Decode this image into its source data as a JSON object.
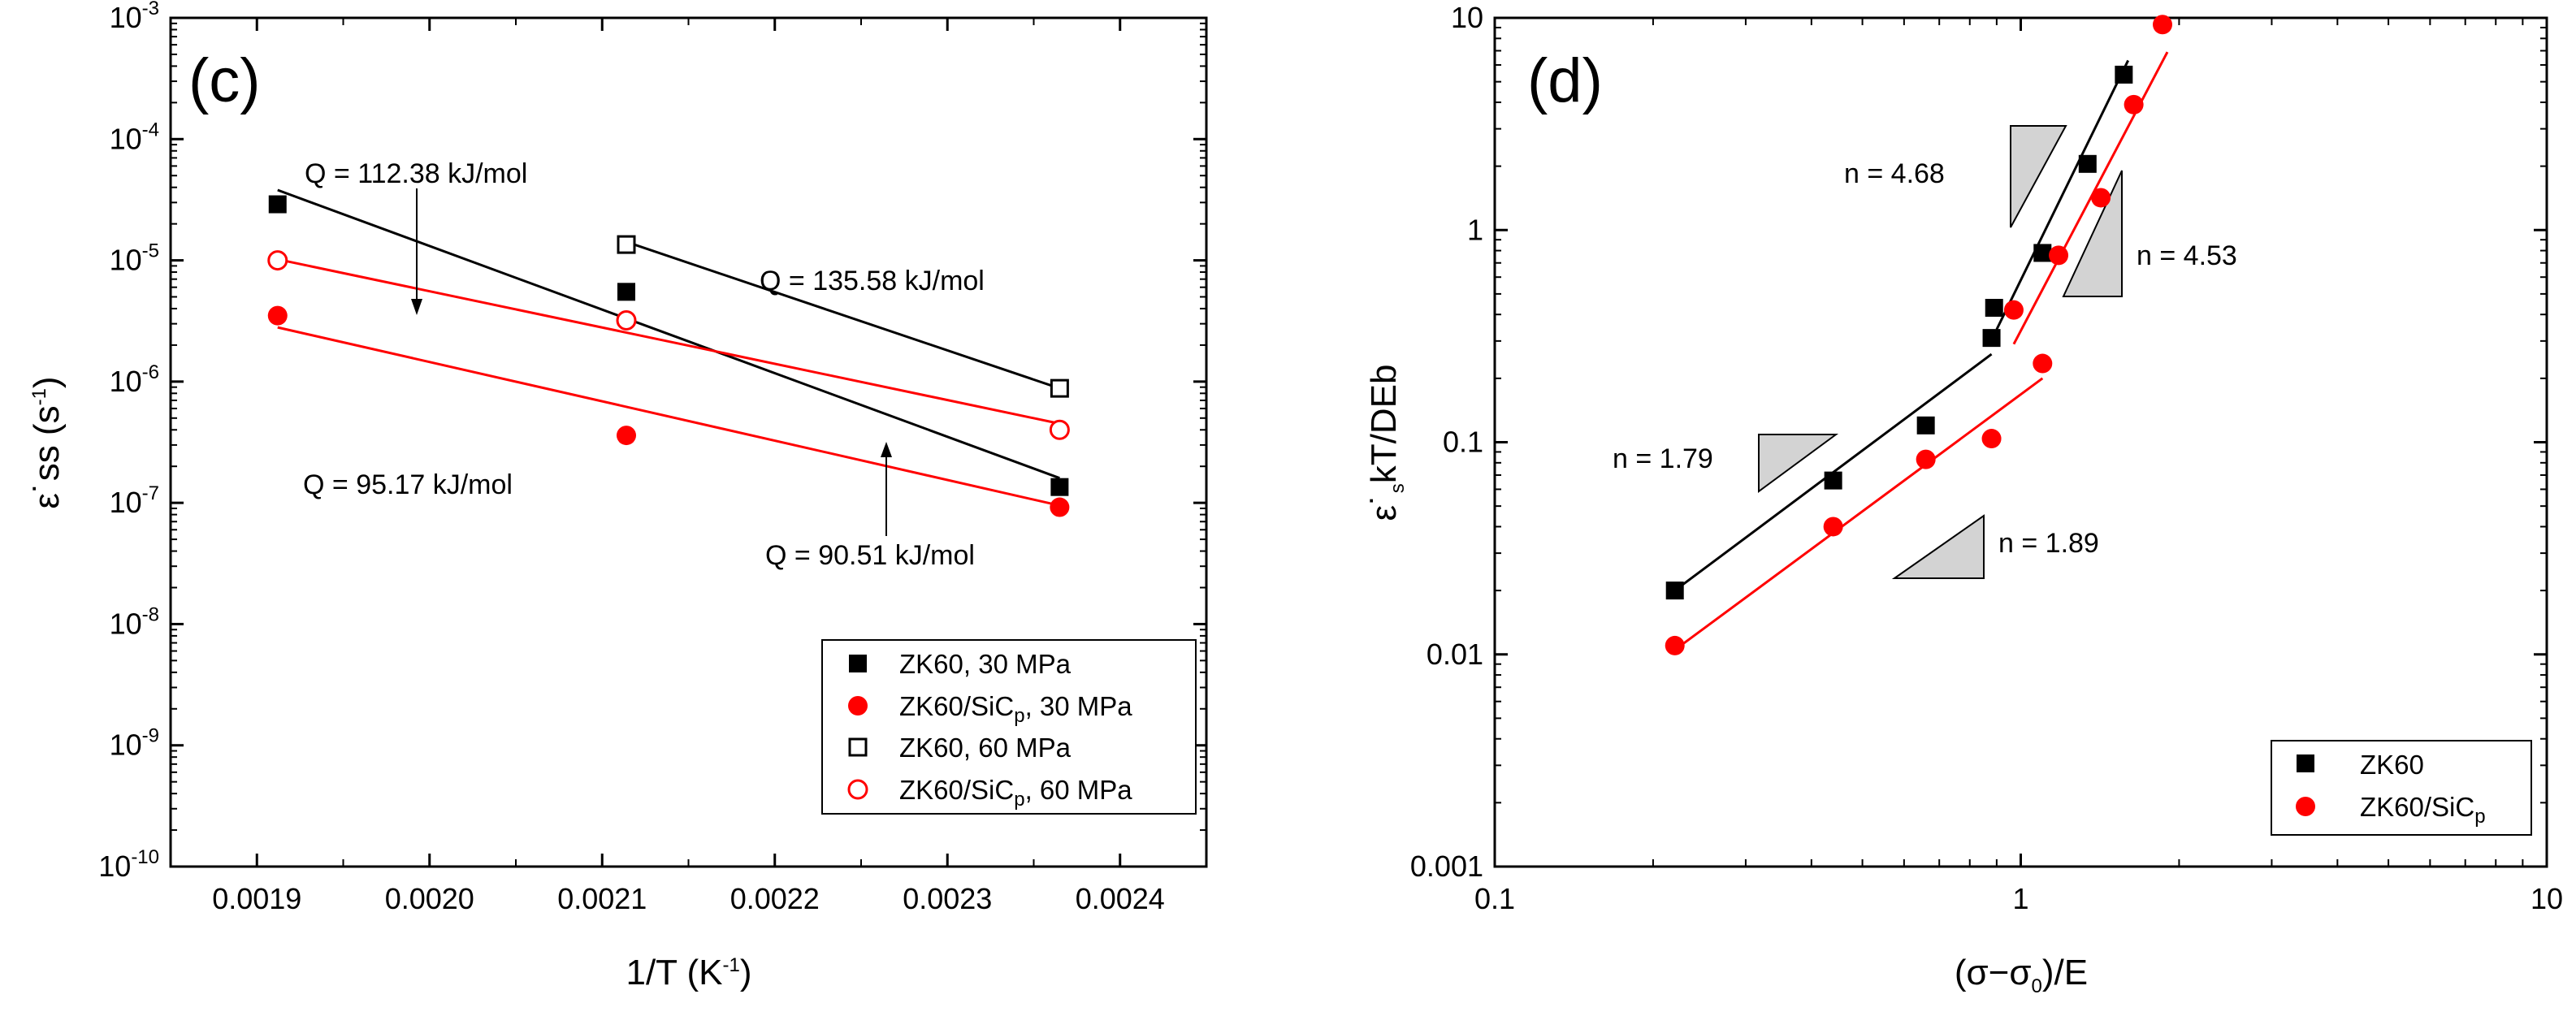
{
  "chart_data": [
    {
      "panel": "(c)",
      "type": "scatter",
      "xscale": "linear",
      "yscale": "log",
      "xlim": [
        0.00185,
        0.00245
      ],
      "ylim": [
        1e-10,
        0.001
      ],
      "xticks": [
        0.0019,
        0.002,
        0.0021,
        0.0022,
        0.0023,
        0.0024
      ],
      "xtick_labels": [
        "0.0019",
        "0.0020",
        "0.0021",
        "0.0022",
        "0.0023",
        "0.0024"
      ],
      "ytick_exponents": [
        -10,
        -9,
        -8,
        -7,
        -6,
        -5,
        -4,
        -3
      ],
      "ytick_base": "10",
      "xlabel": "1/T (K",
      "xlabel_sup": "-1",
      "xlabel_end": ")",
      "ylabel": "ε˙ss (s",
      "ylabel_sup": "-1",
      "ylabel_end": ")",
      "series": [
        {
          "name": "ZK60, 30 MPa",
          "marker": "filled-square",
          "color": "#000000",
          "x": [
            0.001912,
            0.002114,
            0.002365
          ],
          "y": [
            2.9e-05,
            5.5e-06,
            1.35e-07
          ],
          "fit": {
            "x": [
              0.001912,
              0.002365
            ],
            "y": [
              3.8e-05,
              1.6e-07
            ]
          }
        },
        {
          "name": "ZK60/SiC",
          "sub": "p",
          "name_end": ", 30 MPa",
          "marker": "filled-circle",
          "color": "#ff0000",
          "x": [
            0.001912,
            0.002114,
            0.002365
          ],
          "y": [
            3.5e-06,
            3.6e-07,
            9.2e-08
          ],
          "fit": {
            "x": [
              0.001912,
              0.002365
            ],
            "y": [
              2.8e-06,
              9.5e-08
            ]
          }
        },
        {
          "name": "ZK60, 60 MPa",
          "marker": "open-square",
          "color": "#000000",
          "x": [
            0.002114,
            0.002365
          ],
          "y": [
            1.35e-05,
            8.8e-07
          ],
          "fit": {
            "x": [
              0.002114,
              0.002365
            ],
            "y": [
              1.42e-05,
              8.8e-07
            ]
          }
        },
        {
          "name": "ZK60/SiC",
          "sub": "p",
          "name_end": ", 60 MPa",
          "marker": "open-circle",
          "color": "#ff0000",
          "x": [
            0.001912,
            0.002114,
            0.002365
          ],
          "y": [
            1e-05,
            3.2e-06,
            4e-07
          ],
          "fit": {
            "x": [
              0.001912,
              0.002365
            ],
            "y": [
              1.02e-05,
              4.5e-07
            ]
          }
        }
      ],
      "annotations": [
        {
          "text": "Q = 112.38 kJ/mol",
          "arrow": true
        },
        {
          "text": "Q = 135.58 kJ/mol",
          "arrow": false
        },
        {
          "text": "Q = 95.17 kJ/mol",
          "arrow": false
        },
        {
          "text": "Q = 90.51 kJ/mol",
          "arrow": true
        }
      ],
      "legend_position": "bottom-right"
    },
    {
      "panel": "(d)",
      "type": "scatter",
      "xscale": "log",
      "yscale": "log",
      "xlim": [
        0.1,
        10
      ],
      "ylim": [
        0.001,
        10
      ],
      "xtick_labels": [
        "0.1",
        "1",
        "10"
      ],
      "ytick_labels": [
        "0.001",
        "0.01",
        "0.1",
        "1",
        "10"
      ],
      "xlabel": "(σ−σ",
      "xlabel_sub": "0",
      "xlabel_end": ")/E",
      "ylabel": "ε˙",
      "ylabel_sub": "s",
      "ylabel_end": "kT/DEb",
      "series": [
        {
          "name": "ZK60",
          "marker": "filled-square",
          "color": "#000000",
          "x": [
            0.22,
            0.44,
            0.66,
            0.88,
            0.89,
            1.1,
            1.34,
            1.57
          ],
          "y": [
            0.02,
            0.066,
            0.12,
            0.31,
            0.43,
            0.78,
            2.05,
            5.4
          ]
        },
        {
          "name": "ZK60/SiC",
          "sub": "p",
          "marker": "filled-circle",
          "color": "#ff0000",
          "x": [
            0.22,
            0.44,
            0.66,
            0.88,
            0.97,
            1.1,
            1.18,
            1.42,
            1.64,
            1.86
          ],
          "y": [
            0.011,
            0.04,
            0.083,
            0.104,
            0.42,
            0.235,
            0.76,
            1.42,
            3.9,
            9.3
          ]
        }
      ],
      "fits": [
        {
          "color": "#000000",
          "x": [
            0.22,
            0.88
          ],
          "y": [
            0.02,
            0.26
          ]
        },
        {
          "color": "#000000",
          "x": [
            0.9,
            1.6
          ],
          "y": [
            0.34,
            6.3
          ]
        },
        {
          "color": "#ff0000",
          "x": [
            0.22,
            1.1
          ],
          "y": [
            0.0105,
            0.2
          ]
        },
        {
          "color": "#ff0000",
          "x": [
            0.97,
            1.9
          ],
          "y": [
            0.29,
            6.9
          ]
        }
      ],
      "annotations": [
        {
          "text": "n = 4.68"
        },
        {
          "text": "n = 4.53"
        },
        {
          "text": "n = 1.79"
        },
        {
          "text": "n = 1.89"
        }
      ],
      "legend_position": "bottom-right"
    }
  ],
  "colors": {
    "red": "#ff0000",
    "black": "#000000",
    "triangle_fill": "#d3d3d3"
  }
}
